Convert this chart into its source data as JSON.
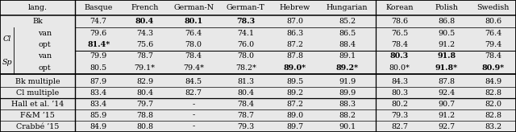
{
  "headers": [
    "lang.",
    "Basque",
    "French",
    "German-N",
    "German-T",
    "Hebrew",
    "Hungarian",
    "Korean",
    "Polish",
    "Swedish"
  ],
  "rows": [
    {
      "label": "Bk",
      "group": null,
      "values": [
        "74.7",
        "80.4",
        "80.1",
        "78.3",
        "87.0",
        "85.2",
        "78.6",
        "86.8",
        "80.6"
      ],
      "bold": [
        false,
        true,
        true,
        true,
        false,
        false,
        false,
        false,
        false
      ]
    },
    {
      "label": "van",
      "group": "Cl",
      "values": [
        "79.6",
        "74.3",
        "76.4",
        "74.1",
        "86.3",
        "86.5",
        "76.5",
        "90.5",
        "76.4"
      ],
      "bold": [
        false,
        false,
        false,
        false,
        false,
        false,
        false,
        false,
        false
      ]
    },
    {
      "label": "opt",
      "group": "Cl",
      "values": [
        "81.4*",
        "75.6",
        "78.0",
        "76.0",
        "87.2",
        "88.4",
        "78.4",
        "91.2",
        "79.4"
      ],
      "bold": [
        true,
        false,
        false,
        false,
        false,
        false,
        false,
        false,
        false
      ]
    },
    {
      "label": "van",
      "group": "Sp",
      "values": [
        "79.9",
        "78.7",
        "78.4",
        "78.0",
        "87.8",
        "89.1",
        "80.3",
        "91.8",
        "78.4"
      ],
      "bold": [
        false,
        false,
        false,
        false,
        false,
        false,
        true,
        true,
        false
      ]
    },
    {
      "label": "opt",
      "group": "Sp",
      "values": [
        "80.5",
        "79.1*",
        "79.4*",
        "78.2*",
        "89.0*",
        "89.2*",
        "80.0*",
        "91.8*",
        "80.9*"
      ],
      "bold": [
        false,
        false,
        false,
        false,
        true,
        true,
        false,
        true,
        true
      ]
    },
    {
      "label": "Bk multiple",
      "group": null,
      "values": [
        "87.9",
        "82.9",
        "84.5",
        "81.3",
        "89.5",
        "91.9",
        "84.3",
        "87.8",
        "84.9"
      ],
      "bold": [
        false,
        false,
        false,
        false,
        false,
        false,
        false,
        false,
        false
      ]
    },
    {
      "label": "Cl multiple",
      "group": null,
      "values": [
        "83.4",
        "80.4",
        "82.7",
        "80.4",
        "89.2",
        "89.9",
        "80.3",
        "92.4",
        "82.8"
      ],
      "bold": [
        false,
        false,
        false,
        false,
        false,
        false,
        false,
        false,
        false
      ]
    },
    {
      "label": "Hall et al. ’14",
      "group": null,
      "values": [
        "83.4",
        "79.7",
        "-",
        "78.4",
        "87.2",
        "88.3",
        "80.2",
        "90.7",
        "82.0"
      ],
      "bold": [
        false,
        false,
        false,
        false,
        false,
        false,
        false,
        false,
        false
      ]
    },
    {
      "label": "F&M ’15",
      "group": null,
      "values": [
        "85.9",
        "78.8",
        "-",
        "78.7",
        "89.0",
        "88.2",
        "79.3",
        "91.2",
        "82.8"
      ],
      "bold": [
        false,
        false,
        false,
        false,
        false,
        false,
        false,
        false,
        false
      ]
    },
    {
      "label": "Crabbé ’15",
      "group": null,
      "values": [
        "84.9",
        "80.8",
        "-",
        "79.3",
        "89.7",
        "90.1",
        "82.7",
        "92.7",
        "83.2"
      ],
      "bold": [
        false,
        false,
        false,
        false,
        false,
        false,
        false,
        false,
        false
      ]
    }
  ],
  "bg_color": "#e8e8e8",
  "font_size": 6.8,
  "header_font_size": 6.8
}
